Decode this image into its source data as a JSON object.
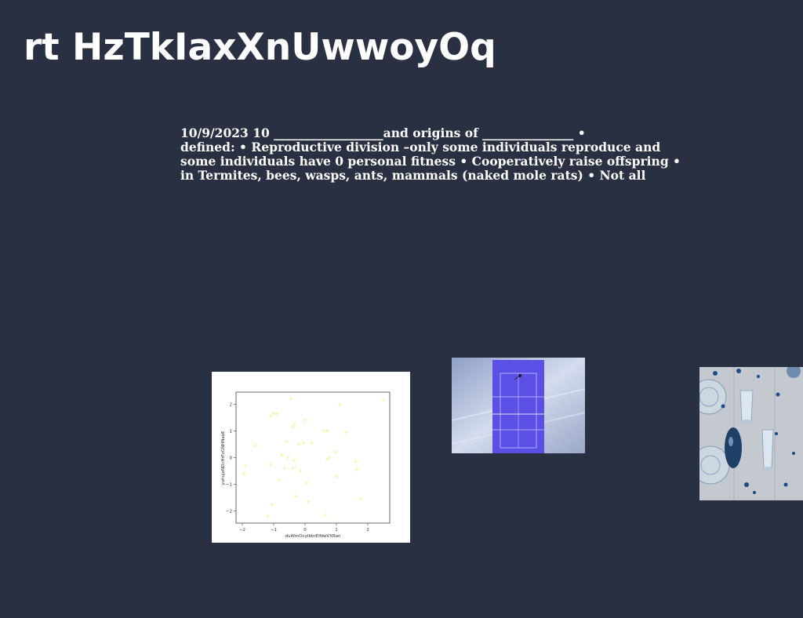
{
  "title": "rt HzTkIaxXnUwwoyOq",
  "body_lines": [
    "10/9/2023 10 __________________and origins of _______________ •",
    "defined: • Reproductive division –only some individuals reproduce and",
    "some individuals have 0 personal fitness • Cooperatively raise offspring •",
    "in Termites, bees, wasps, ants, mammals (naked mole rats) • Not all"
  ],
  "colors": {
    "background": "#293042",
    "text": "#ffffff",
    "point": "#f3f7b4",
    "court": "#5b4fe6"
  },
  "chart_data": {
    "type": "scatter",
    "xlabel": "duWmOcyIbbrEINwVXRan",
    "ylabel": "yuhujeNDcHrFzGNHNaoE",
    "xlim": [
      -2.2,
      2.7
    ],
    "ylim": [
      -2.45,
      2.45
    ],
    "xticks": [
      -2,
      -1,
      0,
      1,
      2
    ],
    "yticks": [
      -2,
      -1,
      0,
      1,
      2
    ],
    "xtick_labels": [
      "−2",
      "−1",
      "0",
      "1",
      "2"
    ],
    "ytick_labels": [
      "−2",
      "−1",
      "0",
      "1",
      "2"
    ],
    "grid": false,
    "x": [
      -1.95,
      -1.9,
      -1.6,
      -1.1,
      -1.1,
      -1.05,
      -1.0,
      -0.9,
      -0.85,
      -0.75,
      -0.65,
      -0.6,
      -0.55,
      -0.45,
      -0.4,
      -0.4,
      -0.35,
      -0.35,
      -0.3,
      -0.2,
      -0.15,
      -0.05,
      0.0,
      0.05,
      0.1,
      0.2,
      0.6,
      0.65,
      0.7,
      0.7,
      0.75,
      0.95,
      1.0,
      1.1,
      1.3,
      1.6,
      1.65,
      1.75,
      2.5,
      -1.2
    ],
    "y": [
      -0.6,
      -0.3,
      0.45,
      1.55,
      -0.25,
      -1.75,
      1.65,
      1.65,
      -0.85,
      0.1,
      -0.4,
      0.6,
      0.0,
      2.2,
      -0.4,
      1.15,
      -0.1,
      1.25,
      -1.45,
      0.5,
      -0.5,
      0.55,
      1.4,
      -0.95,
      -1.65,
      0.55,
      1.0,
      -2.15,
      1.0,
      -0.05,
      0.0,
      0.2,
      -0.7,
      2.0,
      0.95,
      -0.15,
      -0.45,
      -1.55,
      2.15,
      -2.2
    ]
  }
}
